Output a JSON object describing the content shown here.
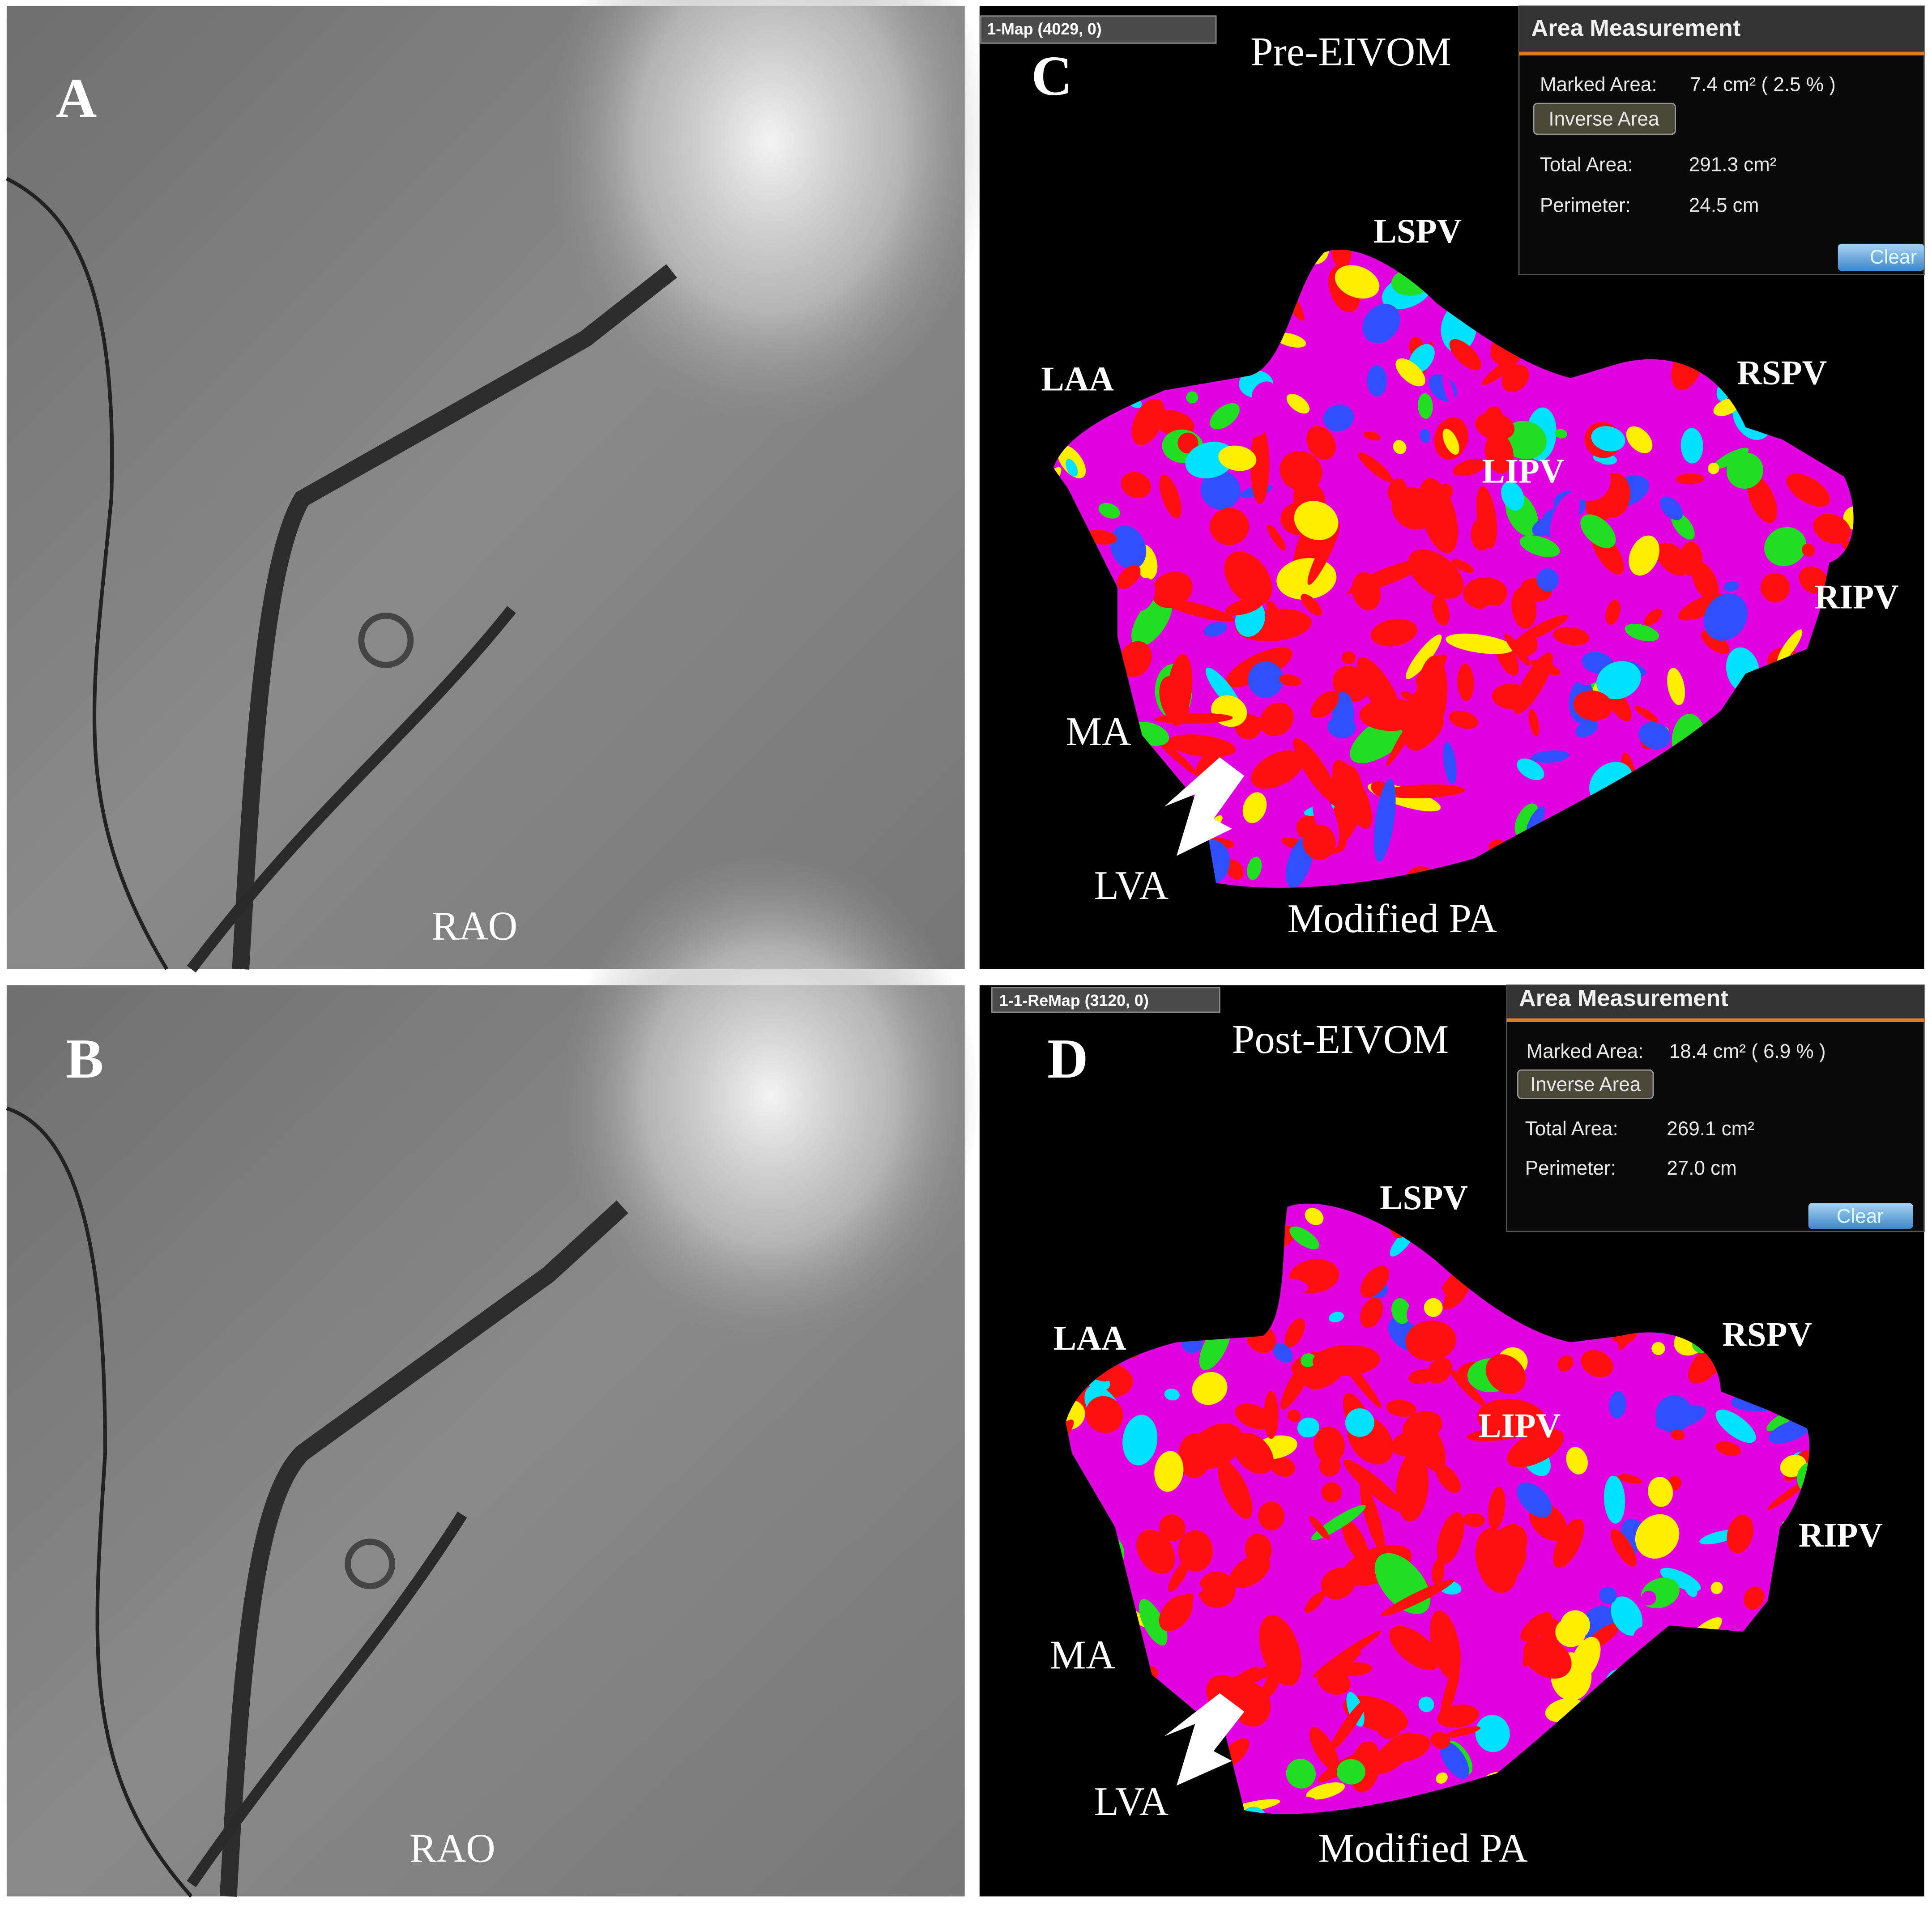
{
  "fluoroscopy": [
    {
      "letter": "A",
      "view": "RAO"
    },
    {
      "letter": "B",
      "view": "RAO"
    }
  ],
  "maps": [
    {
      "letter": "C",
      "title": "Pre-EIVOM",
      "map_name": "1-Map (4029, 0)",
      "measurement": {
        "heading": "Area Measurement",
        "marked_area_label": "Marked Area:",
        "marked_area": "7.4 cm² ( 2.5 % )",
        "inverse_button": "Inverse Area",
        "total_area_label": "Total Area:",
        "total_area": "291.3 cm²",
        "perimeter_label": "Perimeter:",
        "perimeter": "24.5 cm",
        "clear_button": "Clear"
      },
      "labels": {
        "lspv": "LSPV",
        "laa": "LAA",
        "rspv": "RSPV",
        "lipv": "LIPV",
        "ripv": "RIPV",
        "ma": "MA",
        "lva": "LVA",
        "projection": "Modified PA"
      }
    },
    {
      "letter": "D",
      "title": "Post-EIVOM",
      "map_name": "1-1-ReMap (3120, 0)",
      "measurement": {
        "heading": "Area Measurement",
        "marked_area_label": "Marked Area:",
        "marked_area": "18.4 cm² ( 6.9 % )",
        "inverse_button": "Inverse Area",
        "total_area_label": "Total Area:",
        "total_area": "269.1 cm²",
        "perimeter_label": "Perimeter:",
        "perimeter": "27.0 cm",
        "clear_button": "Clear"
      },
      "labels": {
        "lspv": "LSPV",
        "laa": "LAA",
        "rspv": "RSPV",
        "lipv": "LIPV",
        "ripv": "RIPV",
        "ma": "MA",
        "lva": "LVA",
        "projection": "Modified PA"
      }
    }
  ]
}
